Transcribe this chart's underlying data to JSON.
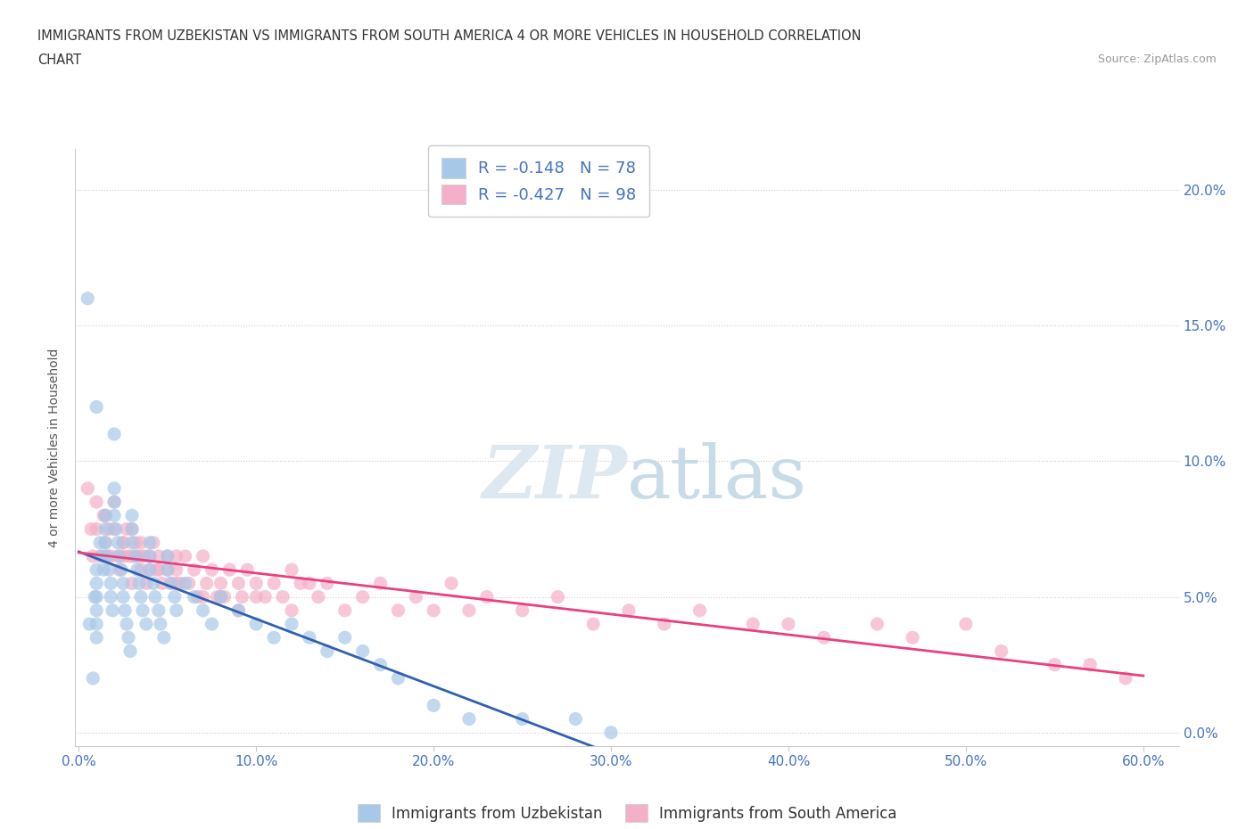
{
  "title_line1": "IMMIGRANTS FROM UZBEKISTAN VS IMMIGRANTS FROM SOUTH AMERICA 4 OR MORE VEHICLES IN HOUSEHOLD CORRELATION",
  "title_line2": "CHART",
  "source_text": "Source: ZipAtlas.com",
  "ylabel": "4 or more Vehicles in Household",
  "xlim": [
    -0.002,
    0.62
  ],
  "ylim": [
    -0.005,
    0.215
  ],
  "xticks": [
    0.0,
    0.1,
    0.2,
    0.3,
    0.4,
    0.5,
    0.6
  ],
  "xticklabels": [
    "0.0%",
    "10.0%",
    "20.0%",
    "30.0%",
    "40.0%",
    "50.0%",
    "60.0%"
  ],
  "yticks": [
    0.0,
    0.05,
    0.1,
    0.15,
    0.2
  ],
  "yticklabels": [
    "0.0%",
    "5.0%",
    "10.0%",
    "15.0%",
    "20.0%"
  ],
  "uzbekistan_color": "#a8c8e8",
  "south_america_color": "#f4b0c8",
  "uzbekistan_line_color": "#3060b0",
  "south_america_line_color": "#e84080",
  "trend_dash_color": "#a0b8d8",
  "R_uzbekistan": -0.148,
  "N_uzbekistan": 78,
  "R_south_america": -0.427,
  "N_south_america": 98,
  "watermark_zip": "ZIP",
  "watermark_atlas": "atlas",
  "legend_label_uzbekistan": "Immigrants from Uzbekistan",
  "legend_label_south_america": "Immigrants from South America",
  "uzbekistan_x": [
    0.005,
    0.006,
    0.008,
    0.009,
    0.01,
    0.01,
    0.01,
    0.01,
    0.01,
    0.01,
    0.012,
    0.013,
    0.014,
    0.015,
    0.015,
    0.015,
    0.016,
    0.017,
    0.018,
    0.018,
    0.019,
    0.02,
    0.02,
    0.02,
    0.021,
    0.022,
    0.023,
    0.024,
    0.025,
    0.025,
    0.026,
    0.027,
    0.028,
    0.029,
    0.03,
    0.03,
    0.03,
    0.032,
    0.033,
    0.034,
    0.035,
    0.036,
    0.038,
    0.04,
    0.04,
    0.04,
    0.042,
    0.043,
    0.045,
    0.046,
    0.048,
    0.05,
    0.05,
    0.052,
    0.054,
    0.055,
    0.06,
    0.065,
    0.07,
    0.075,
    0.08,
    0.09,
    0.1,
    0.11,
    0.12,
    0.13,
    0.14,
    0.15,
    0.16,
    0.17,
    0.18,
    0.2,
    0.22,
    0.25,
    0.28,
    0.3,
    0.01,
    0.02
  ],
  "uzbekistan_y": [
    0.16,
    0.04,
    0.02,
    0.05,
    0.06,
    0.055,
    0.05,
    0.045,
    0.04,
    0.035,
    0.07,
    0.065,
    0.06,
    0.08,
    0.075,
    0.07,
    0.065,
    0.06,
    0.055,
    0.05,
    0.045,
    0.09,
    0.085,
    0.08,
    0.075,
    0.07,
    0.065,
    0.06,
    0.055,
    0.05,
    0.045,
    0.04,
    0.035,
    0.03,
    0.08,
    0.075,
    0.07,
    0.065,
    0.06,
    0.055,
    0.05,
    0.045,
    0.04,
    0.07,
    0.065,
    0.06,
    0.055,
    0.05,
    0.045,
    0.04,
    0.035,
    0.065,
    0.06,
    0.055,
    0.05,
    0.045,
    0.055,
    0.05,
    0.045,
    0.04,
    0.05,
    0.045,
    0.04,
    0.035,
    0.04,
    0.035,
    0.03,
    0.035,
    0.03,
    0.025,
    0.02,
    0.01,
    0.005,
    0.005,
    0.005,
    0.0,
    0.12,
    0.11
  ],
  "south_america_x": [
    0.005,
    0.007,
    0.008,
    0.01,
    0.01,
    0.012,
    0.014,
    0.015,
    0.015,
    0.017,
    0.018,
    0.02,
    0.02,
    0.022,
    0.023,
    0.025,
    0.025,
    0.027,
    0.028,
    0.03,
    0.03,
    0.03,
    0.032,
    0.033,
    0.035,
    0.035,
    0.037,
    0.038,
    0.04,
    0.04,
    0.042,
    0.044,
    0.045,
    0.047,
    0.05,
    0.05,
    0.052,
    0.055,
    0.055,
    0.057,
    0.06,
    0.062,
    0.065,
    0.067,
    0.07,
    0.072,
    0.075,
    0.078,
    0.08,
    0.082,
    0.085,
    0.09,
    0.092,
    0.095,
    0.1,
    0.105,
    0.11,
    0.115,
    0.12,
    0.125,
    0.13,
    0.135,
    0.14,
    0.15,
    0.16,
    0.17,
    0.18,
    0.19,
    0.2,
    0.21,
    0.22,
    0.23,
    0.25,
    0.27,
    0.29,
    0.31,
    0.33,
    0.35,
    0.38,
    0.4,
    0.42,
    0.45,
    0.47,
    0.5,
    0.52,
    0.55,
    0.57,
    0.59,
    0.015,
    0.025,
    0.035,
    0.045,
    0.055,
    0.07,
    0.08,
    0.09,
    0.1,
    0.12
  ],
  "south_america_y": [
    0.09,
    0.075,
    0.065,
    0.085,
    0.075,
    0.065,
    0.08,
    0.07,
    0.065,
    0.075,
    0.065,
    0.085,
    0.075,
    0.065,
    0.06,
    0.07,
    0.065,
    0.075,
    0.065,
    0.075,
    0.065,
    0.055,
    0.07,
    0.065,
    0.07,
    0.06,
    0.065,
    0.055,
    0.065,
    0.06,
    0.07,
    0.06,
    0.065,
    0.055,
    0.065,
    0.06,
    0.055,
    0.065,
    0.06,
    0.055,
    0.065,
    0.055,
    0.06,
    0.05,
    0.065,
    0.055,
    0.06,
    0.05,
    0.055,
    0.05,
    0.06,
    0.055,
    0.05,
    0.06,
    0.055,
    0.05,
    0.055,
    0.05,
    0.06,
    0.055,
    0.055,
    0.05,
    0.055,
    0.045,
    0.05,
    0.055,
    0.045,
    0.05,
    0.045,
    0.055,
    0.045,
    0.05,
    0.045,
    0.05,
    0.04,
    0.045,
    0.04,
    0.045,
    0.04,
    0.04,
    0.035,
    0.04,
    0.035,
    0.04,
    0.03,
    0.025,
    0.025,
    0.02,
    0.08,
    0.07,
    0.065,
    0.06,
    0.055,
    0.05,
    0.05,
    0.045,
    0.05,
    0.045
  ]
}
